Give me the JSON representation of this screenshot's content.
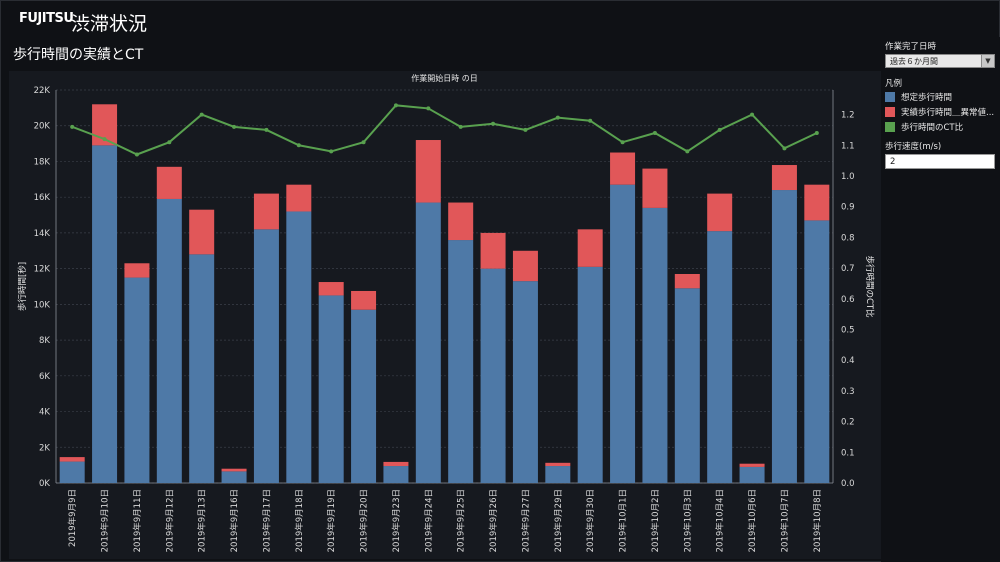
{
  "header": {
    "logo_text": "FUJITSU",
    "title": "渋滞状況"
  },
  "chart_title": "歩行時間の実績とCT",
  "side_panel": {
    "filter_label": "作業完了日時",
    "filter_value": "過去６か月間",
    "legend_title": "凡例",
    "legend_items": [
      {
        "label": "想定歩行時間",
        "color": "#4e79a7"
      },
      {
        "label": "実績歩行時間＿異常値...",
        "color": "#e15759"
      },
      {
        "label": "歩行時間のCT比",
        "color": "#59a14f"
      }
    ],
    "speed_label": "歩行速度(m/s)",
    "speed_value": "2"
  },
  "chart_data": {
    "type": "bar",
    "header_label": "作業開始日時 の日",
    "ylabel": "歩行時間[秒]",
    "y2label": "歩行時間のCT比",
    "ylim": [
      0,
      22000
    ],
    "y2lim": [
      0,
      1.28
    ],
    "yticks": [
      "0K",
      "2K",
      "4K",
      "6K",
      "8K",
      "10K",
      "12K",
      "14K",
      "16K",
      "18K",
      "20K",
      "22K"
    ],
    "y2ticks": [
      "0.0",
      "0.1",
      "0.2",
      "0.3",
      "0.4",
      "0.5",
      "0.6",
      "0.7",
      "0.8",
      "0.9",
      "1.0",
      "1.1",
      "1.2"
    ],
    "categories": [
      "2019年9月9日",
      "2019年9月10日",
      "2019年9月11日",
      "2019年9月12日",
      "2019年9月13日",
      "2019年9月16日",
      "2019年9月17日",
      "2019年9月18日",
      "2019年9月19日",
      "2019年9月20日",
      "2019年9月23日",
      "2019年9月24日",
      "2019年9月25日",
      "2019年9月26日",
      "2019年9月27日",
      "2019年9月29日",
      "2019年9月30日",
      "2019年10月1日",
      "2019年10月2日",
      "2019年10月3日",
      "2019年10月4日",
      "2019年10月6日",
      "2019年10月7日",
      "2019年10月8日"
    ],
    "series": [
      {
        "name": "想定歩行時間",
        "kind": "bar",
        "color": "#4e79a7",
        "values": [
          1200,
          18900,
          11500,
          15900,
          12800,
          650,
          14200,
          15200,
          10500,
          9700,
          950,
          15700,
          13600,
          12000,
          11300,
          950,
          12100,
          16700,
          15400,
          10900,
          14100,
          900,
          16400,
          14700
        ]
      },
      {
        "name": "実績歩行時間＿異常値...",
        "kind": "bar",
        "color": "#e15759",
        "values": [
          250,
          2300,
          800,
          1800,
          2500,
          150,
          2000,
          1500,
          750,
          1050,
          230,
          3500,
          2100,
          2000,
          1700,
          180,
          2100,
          1800,
          2200,
          800,
          2100,
          180,
          1400,
          2000
        ]
      },
      {
        "name": "歩行時間のCT比",
        "kind": "line",
        "axis": "right",
        "color": "#59a14f",
        "values": [
          1.16,
          1.12,
          1.07,
          1.11,
          1.2,
          1.16,
          1.15,
          1.1,
          1.08,
          1.11,
          1.23,
          1.22,
          1.16,
          1.17,
          1.15,
          1.19,
          1.18,
          1.11,
          1.14,
          1.08,
          1.15,
          1.2,
          1.09,
          1.14
        ]
      }
    ],
    "grid": true
  }
}
